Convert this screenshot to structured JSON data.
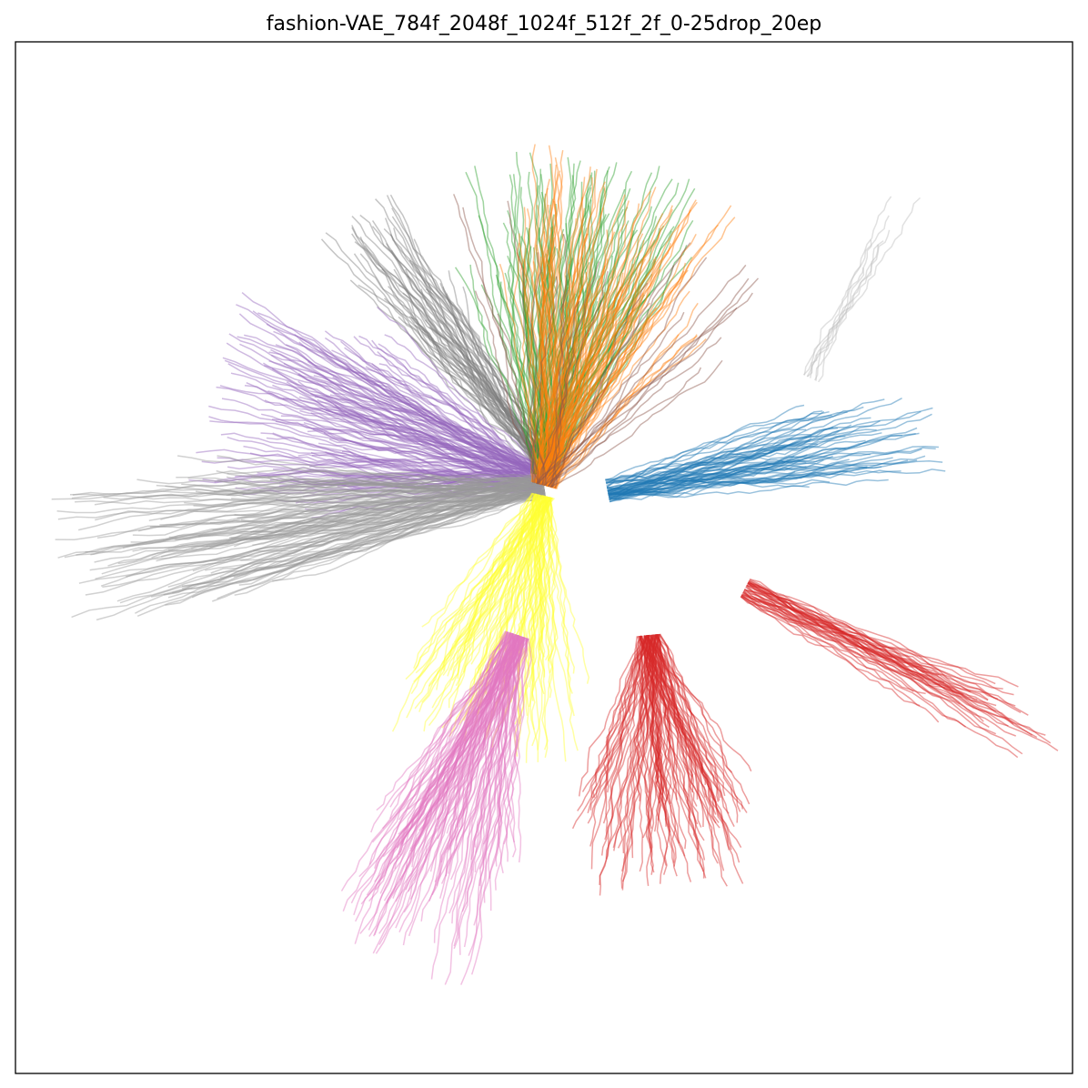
{
  "chart_data": {
    "type": "line",
    "title": "fashion-VAE_784f_2048f_1024f_512f_2f_0-25drop_20ep",
    "xlabel": "",
    "ylabel": "",
    "xlim": [
      -1,
      1
    ],
    "ylim": [
      -1,
      1
    ],
    "grid": false,
    "legend": "none",
    "line_alpha": 0.45,
    "series": [
      {
        "color": "#7f7f7f",
        "paths": [
          [
            0,
            0.19
          ],
          [
            -0.36,
            0.67
          ]
        ],
        "count": 55,
        "spread": 0.08
      },
      {
        "color": "#9467bd",
        "paths": [
          [
            0,
            0.15
          ],
          [
            -0.63,
            0.33
          ]
        ],
        "count": 130,
        "spread": 0.18
      },
      {
        "color": "#999999",
        "paths": [
          [
            0,
            0.14
          ],
          [
            -0.92,
            0.0
          ]
        ],
        "count": 110,
        "spread": 0.14
      },
      {
        "color": "#2ca02c",
        "paths": [
          [
            0,
            0.16
          ],
          [
            0.08,
            0.78
          ]
        ],
        "count": 110,
        "spread": 0.2
      },
      {
        "color": "#ff7f0e",
        "paths": [
          [
            0,
            0.14
          ],
          [
            0.18,
            0.75
          ]
        ],
        "count": 110,
        "spread": 0.2
      },
      {
        "color": "#8c564b",
        "paths": [
          [
            0,
            0.14
          ],
          [
            0.12,
            0.65
          ]
        ],
        "count": 25,
        "spread": 0.3
      },
      {
        "color": "#1f77b4",
        "paths": [
          [
            0.12,
            0.13
          ],
          [
            0.75,
            0.25
          ]
        ],
        "count": 60,
        "spread": 0.08
      },
      {
        "color": "#ffff33",
        "paths": [
          [
            0,
            0.12
          ],
          [
            -0.12,
            -0.38
          ]
        ],
        "count": 90,
        "spread": 0.16
      },
      {
        "color": "#e377c2",
        "paths": [
          [
            -0.05,
            -0.15
          ],
          [
            -0.27,
            -0.8
          ]
        ],
        "count": 110,
        "spread": 0.14
      },
      {
        "color": "#d62728",
        "paths": [
          [
            0.2,
            -0.15
          ],
          [
            0.25,
            -0.65
          ]
        ],
        "count": 100,
        "spread": 0.16
      },
      {
        "color": "#d62728",
        "paths": [
          [
            0.38,
            -0.06
          ],
          [
            0.98,
            -0.36
          ]
        ],
        "count": 40,
        "spread": 0.04
      },
      {
        "color": "#bcbcbc",
        "paths": [
          [
            0.5,
            0.35
          ],
          [
            0.68,
            0.72
          ]
        ],
        "count": 8,
        "spread": 0.06
      }
    ]
  }
}
